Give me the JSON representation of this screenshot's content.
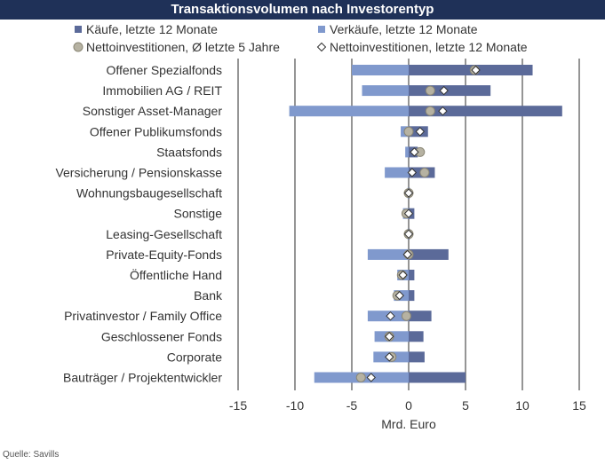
{
  "chart_data": {
    "type": "bar",
    "title": "Transaktionsvolumen nach Investorentyp",
    "xlabel": "Mrd. Euro",
    "xlim": [
      -15,
      15
    ],
    "xticks": [
      -15,
      -10,
      -5,
      0,
      5,
      10,
      15
    ],
    "xtick_labels": [
      "-15",
      "-10",
      "-5",
      "0",
      "5",
      "10",
      "15"
    ],
    "grid": "vertical",
    "legend_position": "top",
    "categories": [
      "Offener Spezialfonds",
      "Immobilien AG / REIT",
      "Sonstiger Asset-Manager",
      "Offener Publikumsfonds",
      "Staatsfonds",
      "Versicherung / Pensionskasse",
      "Wohnungsbaugesellschaft",
      "Sonstige",
      "Leasing-Gesellschaft",
      "Private-Equity-Fonds",
      "Öffentliche Hand",
      "Bank",
      "Privatinvestor / Family Office",
      "Geschlossener Fonds",
      "Corporate",
      "Bauträger / Projektentwickler"
    ],
    "series": [
      {
        "name": "Käufe, letzte 12 Monate",
        "kind": "bar",
        "color": "#5b6a99",
        "values": [
          10.9,
          7.2,
          13.5,
          1.7,
          0.8,
          2.3,
          0.1,
          0.5,
          0.1,
          3.5,
          0.5,
          0.5,
          2.0,
          1.3,
          1.4,
          5.0
        ]
      },
      {
        "name": "Verkäufe, letzte 12 Monate",
        "kind": "bar",
        "color": "#8099cd",
        "values": [
          -5.0,
          -4.1,
          -10.5,
          -0.7,
          -0.3,
          -2.1,
          -0.1,
          -0.5,
          -0.1,
          -3.6,
          -1.0,
          -1.3,
          -3.6,
          -3.0,
          -3.1,
          -8.3
        ]
      },
      {
        "name": "Nettoinvestitionen, Ø letzte 5 Jahre",
        "kind": "circle",
        "color": "#b6b2a2",
        "values": [
          5.8,
          1.9,
          1.9,
          0.0,
          1.0,
          1.4,
          0.0,
          -0.2,
          0.0,
          0.0,
          -0.6,
          -1.0,
          -0.2,
          -1.7,
          -1.5,
          -4.2
        ]
      },
      {
        "name": "Nettoinvestitionen, letzte 12 Monate",
        "kind": "diamond",
        "color": "#ffffff",
        "values": [
          5.9,
          3.1,
          3.0,
          1.0,
          0.5,
          0.3,
          0.0,
          0.0,
          0.0,
          -0.1,
          -0.5,
          -0.8,
          -1.6,
          -1.7,
          -1.7,
          -3.3
        ]
      }
    ]
  },
  "footer": {
    "source": "Quelle: Savills"
  }
}
